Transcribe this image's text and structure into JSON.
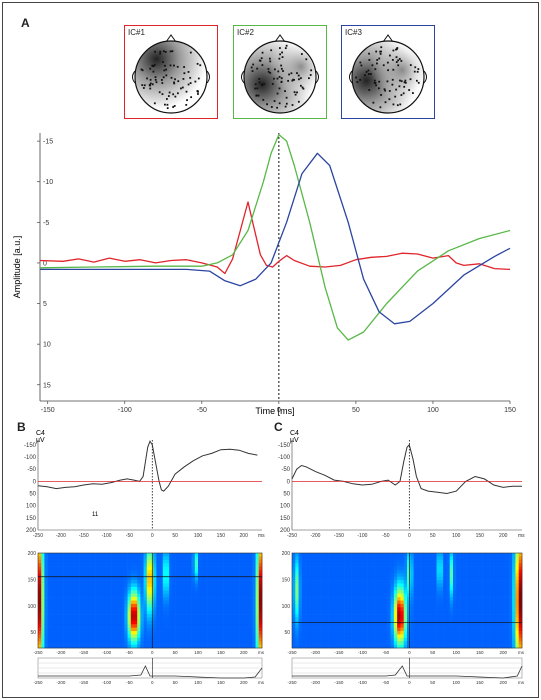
{
  "panel_labels": {
    "a": "A",
    "b": "B",
    "c": "C"
  },
  "colors": {
    "red": "#e0242b",
    "green": "#58b847",
    "blue": "#2b45a0"
  },
  "topomaps": [
    {
      "label": "IC#1",
      "color": "#e0242b"
    },
    {
      "label": "IC#2",
      "color": "#58b847"
    },
    {
      "label": "IC#3",
      "color": "#2b45a0"
    }
  ],
  "chart_data": [
    {
      "type": "line",
      "xlabel": "Time [ms]",
      "ylabel": "Amplitude [a.u.]",
      "xlim": [
        -155,
        150
      ],
      "ylim": [
        17,
        -16
      ],
      "xticks": [
        -150,
        -100,
        -50,
        0,
        50,
        100,
        150
      ],
      "yticks": [
        15,
        10,
        5,
        0,
        -5,
        -10,
        -15
      ],
      "ytick_labels": [
        "15",
        "10",
        "5",
        "0",
        "-5",
        "-10",
        "-15"
      ],
      "series": [
        {
          "color": "#e0242b",
          "points": [
            [
              -155,
              -0.3
            ],
            [
              -140,
              -0.2
            ],
            [
              -130,
              -0.5
            ],
            [
              -120,
              -0.1
            ],
            [
              -110,
              -0.6
            ],
            [
              -100,
              -0.2
            ],
            [
              -90,
              -0.4
            ],
            [
              -80,
              0.0
            ],
            [
              -70,
              -0.3
            ],
            [
              -60,
              -0.4
            ],
            [
              -50,
              0.0
            ],
            [
              -40,
              0.5
            ],
            [
              -35,
              1.3
            ],
            [
              -30,
              -0.5
            ],
            [
              -25,
              -4.0
            ],
            [
              -20,
              -7.5
            ],
            [
              -17,
              -5.0
            ],
            [
              -12,
              -1.0
            ],
            [
              -8,
              0.3
            ],
            [
              -4,
              0.5
            ],
            [
              0,
              -0.2
            ],
            [
              5,
              -0.9
            ],
            [
              10,
              -0.3
            ],
            [
              20,
              0.4
            ],
            [
              30,
              0.5
            ],
            [
              40,
              0.3
            ],
            [
              50,
              -0.4
            ],
            [
              60,
              -0.7
            ],
            [
              70,
              -0.8
            ],
            [
              80,
              -1.2
            ],
            [
              90,
              -1.1
            ],
            [
              100,
              -0.6
            ],
            [
              110,
              -0.9
            ],
            [
              115,
              0.0
            ],
            [
              120,
              0.3
            ],
            [
              130,
              0.1
            ],
            [
              140,
              0.7
            ],
            [
              150,
              0.8
            ]
          ]
        },
        {
          "color": "#58b847",
          "points": [
            [
              -155,
              0.6
            ],
            [
              -120,
              0.5
            ],
            [
              -80,
              0.4
            ],
            [
              -50,
              0.4
            ],
            [
              -40,
              0.0
            ],
            [
              -30,
              -1.0
            ],
            [
              -20,
              -4.0
            ],
            [
              -10,
              -10.0
            ],
            [
              -5,
              -13.5
            ],
            [
              0,
              -15.8
            ],
            [
              5,
              -15.0
            ],
            [
              10,
              -12.0
            ],
            [
              20,
              -5.0
            ],
            [
              30,
              3.0
            ],
            [
              38,
              8.0
            ],
            [
              45,
              9.5
            ],
            [
              55,
              8.5
            ],
            [
              70,
              5.0
            ],
            [
              90,
              1.0
            ],
            [
              110,
              -1.5
            ],
            [
              130,
              -3.0
            ],
            [
              150,
              -4.0
            ]
          ]
        },
        {
          "color": "#2b45a0",
          "points": [
            [
              -155,
              0.8
            ],
            [
              -100,
              0.8
            ],
            [
              -60,
              0.8
            ],
            [
              -45,
              1.0
            ],
            [
              -35,
              2.2
            ],
            [
              -25,
              2.8
            ],
            [
              -15,
              2.0
            ],
            [
              -5,
              0.0
            ],
            [
              5,
              -5.0
            ],
            [
              15,
              -11.0
            ],
            [
              25,
              -13.5
            ],
            [
              33,
              -12.0
            ],
            [
              45,
              -5.0
            ],
            [
              55,
              2.0
            ],
            [
              65,
              6.0
            ],
            [
              75,
              7.5
            ],
            [
              85,
              7.2
            ],
            [
              100,
              5.0
            ],
            [
              120,
              1.5
            ],
            [
              140,
              -0.8
            ],
            [
              150,
              -1.8
            ]
          ]
        }
      ]
    },
    {
      "type": "line",
      "channel": "C4",
      "unit": "µV",
      "xlim": [
        -250,
        240
      ],
      "xticks": [
        -250,
        -200,
        -150,
        -100,
        -50,
        0,
        50,
        100,
        150,
        200
      ],
      "xunit": "ms",
      "yticks": [
        -150,
        -100,
        -50,
        0,
        50,
        100,
        150,
        200
      ],
      "annotation": "11",
      "series": [
        {
          "color": "#333333",
          "points": [
            [
              -250,
              18
            ],
            [
              -230,
              22
            ],
            [
              -210,
              30
            ],
            [
              -190,
              25
            ],
            [
              -170,
              22
            ],
            [
              -150,
              15
            ],
            [
              -130,
              10
            ],
            [
              -110,
              12
            ],
            [
              -90,
              5
            ],
            [
              -70,
              -5
            ],
            [
              -55,
              -10
            ],
            [
              -40,
              -5
            ],
            [
              -28,
              0
            ],
            [
              -20,
              -20
            ],
            [
              -15,
              -80
            ],
            [
              -10,
              -140
            ],
            [
              -5,
              -165
            ],
            [
              0,
              -150
            ],
            [
              8,
              -70
            ],
            [
              15,
              0
            ],
            [
              20,
              35
            ],
            [
              25,
              40
            ],
            [
              35,
              20
            ],
            [
              50,
              -30
            ],
            [
              70,
              -60
            ],
            [
              90,
              -85
            ],
            [
              110,
              -105
            ],
            [
              130,
              -115
            ],
            [
              150,
              -130
            ],
            [
              170,
              -132
            ],
            [
              190,
              -128
            ],
            [
              210,
              -115
            ],
            [
              230,
              -108
            ]
          ]
        },
        {
          "color": "#e0242b",
          "points": [
            [
              -250,
              0
            ],
            [
              -200,
              0
            ],
            [
              -150,
              0
            ],
            [
              -100,
              0
            ],
            [
              -50,
              0
            ],
            [
              0,
              0
            ],
            [
              50,
              0
            ],
            [
              100,
              0
            ],
            [
              150,
              0
            ],
            [
              200,
              0
            ],
            [
              240,
              0
            ]
          ]
        }
      ]
    },
    {
      "type": "line",
      "channel": "C4",
      "unit": "µV",
      "xlim": [
        -250,
        240
      ],
      "xticks": [
        -250,
        -200,
        -150,
        -100,
        -50,
        0,
        50,
        100,
        150,
        200
      ],
      "xunit": "ms",
      "yticks": [
        -150,
        -100,
        -50,
        0,
        50,
        100,
        150,
        200
      ],
      "series": [
        {
          "color": "#333333",
          "points": [
            [
              -250,
              -10
            ],
            [
              -240,
              -50
            ],
            [
              -230,
              -65
            ],
            [
              -220,
              -60
            ],
            [
              -200,
              -40
            ],
            [
              -180,
              -25
            ],
            [
              -160,
              -5
            ],
            [
              -140,
              0
            ],
            [
              -120,
              10
            ],
            [
              -100,
              15
            ],
            [
              -80,
              12
            ],
            [
              -60,
              0
            ],
            [
              -45,
              -5
            ],
            [
              -30,
              15
            ],
            [
              -20,
              0
            ],
            [
              -12,
              -80
            ],
            [
              -5,
              -140
            ],
            [
              0,
              -150
            ],
            [
              8,
              -90
            ],
            [
              15,
              -20
            ],
            [
              25,
              30
            ],
            [
              40,
              40
            ],
            [
              60,
              45
            ],
            [
              80,
              50
            ],
            [
              100,
              40
            ],
            [
              120,
              0
            ],
            [
              140,
              -20
            ],
            [
              160,
              -10
            ],
            [
              180,
              15
            ],
            [
              200,
              25
            ],
            [
              220,
              20
            ],
            [
              240,
              20
            ]
          ]
        },
        {
          "color": "#e0242b",
          "points": [
            [
              -250,
              0
            ],
            [
              -200,
              0
            ],
            [
              -150,
              0
            ],
            [
              -100,
              0
            ],
            [
              -50,
              0
            ],
            [
              0,
              0
            ],
            [
              50,
              0
            ],
            [
              100,
              0
            ],
            [
              150,
              0
            ],
            [
              200,
              0
            ],
            [
              240,
              0
            ]
          ]
        }
      ]
    },
    {
      "type": "heatmap",
      "xlim": [
        -250,
        240
      ],
      "ylim": [
        20,
        200
      ],
      "xticks": [
        -250,
        -200,
        -150,
        -100,
        -50,
        0,
        50,
        100,
        150,
        200
      ],
      "xunit": "ms",
      "yticks": [
        50,
        100,
        150,
        200
      ],
      "y_marker": 155,
      "blobs": [
        {
          "x": -40,
          "y": 80,
          "sx": 8,
          "sy": 30,
          "amp": 1.0
        },
        {
          "x": -5,
          "y": 150,
          "sx": 6,
          "sy": 40,
          "amp": 0.7
        },
        {
          "x": 30,
          "y": 160,
          "sx": 4,
          "sy": 30,
          "amp": 0.3
        },
        {
          "x": 95,
          "y": 180,
          "sx": 3,
          "sy": 20,
          "amp": 0.3
        },
        {
          "x": -248,
          "y": 110,
          "sx": 6,
          "sy": 90,
          "amp": 1.0
        },
        {
          "x": 238,
          "y": 110,
          "sx": 6,
          "sy": 90,
          "amp": 1.0
        }
      ]
    },
    {
      "type": "heatmap",
      "xlim": [
        -250,
        240
      ],
      "ylim": [
        20,
        200
      ],
      "xticks": [
        -250,
        -200,
        -150,
        -100,
        -50,
        0,
        50,
        100,
        150,
        200
      ],
      "xunit": "ms",
      "yticks": [
        50,
        100,
        150,
        200
      ],
      "y_marker": 68,
      "blobs": [
        {
          "x": -20,
          "y": 80,
          "sx": 8,
          "sy": 35,
          "amp": 1.0
        },
        {
          "x": 0,
          "y": 160,
          "sx": 4,
          "sy": 30,
          "amp": 0.3
        },
        {
          "x": 65,
          "y": 170,
          "sx": 3,
          "sy": 25,
          "amp": 0.3
        },
        {
          "x": 90,
          "y": 160,
          "sx": 3,
          "sy": 30,
          "amp": 0.3
        },
        {
          "x": -240,
          "y": 130,
          "sx": 4,
          "sy": 40,
          "amp": 0.35
        },
        {
          "x": 236,
          "y": 110,
          "sx": 7,
          "sy": 90,
          "amp": 1.0
        }
      ]
    },
    {
      "type": "line",
      "xlim": [
        -250,
        240
      ],
      "xticks": [
        -250,
        -200,
        -150,
        -100,
        -50,
        0,
        50,
        100,
        150,
        200
      ],
      "xunit": "ms",
      "series": [
        {
          "color": "#333333",
          "points": [
            [
              -250,
              0.1
            ],
            [
              -200,
              0.1
            ],
            [
              -150,
              0.1
            ],
            [
              -100,
              0.1
            ],
            [
              -50,
              0.1
            ],
            [
              -25,
              0.15
            ],
            [
              -15,
              0.6
            ],
            [
              -5,
              0.1
            ],
            [
              0,
              0.1
            ],
            [
              50,
              0.1
            ],
            [
              100,
              0.05
            ],
            [
              150,
              0.0
            ],
            [
              200,
              0.0
            ],
            [
              225,
              0.05
            ],
            [
              240,
              0.5
            ]
          ]
        }
      ]
    },
    {
      "type": "line",
      "xlim": [
        -250,
        240
      ],
      "xticks": [
        -250,
        -200,
        -150,
        -100,
        -50,
        0,
        50,
        100,
        150,
        200
      ],
      "xunit": "ms",
      "series": [
        {
          "color": "#333333",
          "points": [
            [
              -250,
              0.1
            ],
            [
              -200,
              0.1
            ],
            [
              -150,
              0.1
            ],
            [
              -100,
              0.1
            ],
            [
              -50,
              0.1
            ],
            [
              -30,
              0.15
            ],
            [
              -15,
              0.6
            ],
            [
              -5,
              0.1
            ],
            [
              0,
              0.1
            ],
            [
              50,
              0.1
            ],
            [
              100,
              0.1
            ],
            [
              150,
              0.05
            ],
            [
              200,
              0.0
            ],
            [
              230,
              0.1
            ],
            [
              240,
              0.6
            ]
          ]
        }
      ]
    }
  ]
}
